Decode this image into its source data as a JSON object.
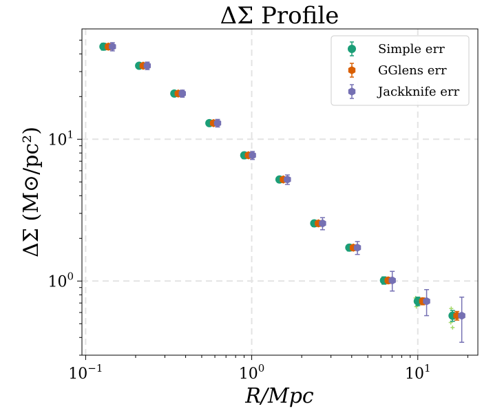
{
  "chart_data": {
    "type": "scatter",
    "title": "ΔΣ Profile",
    "xlabel": "R/Mpc",
    "ylabel": "ΔΣ (M⊙/pc²)",
    "xscale": "log",
    "yscale": "log",
    "xlim": [
      0.095,
      23
    ],
    "ylim": [
      0.3,
      60
    ],
    "xticks": [
      {
        "value": 0.1,
        "base": "10",
        "exp": "−1"
      },
      {
        "value": 1,
        "base": "10",
        "exp": "0"
      },
      {
        "value": 10,
        "base": "10",
        "exp": "1"
      }
    ],
    "yticks": [
      {
        "value": 1,
        "base": "10",
        "exp": "0"
      },
      {
        "value": 10,
        "base": "10",
        "exp": "1"
      }
    ],
    "grid": true,
    "legend_position": "top-right",
    "series": [
      {
        "name": "Simple err",
        "color": "#1b9e77",
        "marker": "circle",
        "points": [
          {
            "x": 0.128,
            "y": 45.0,
            "err": 2.5
          },
          {
            "x": 0.21,
            "y": 33.0,
            "err": 1.5
          },
          {
            "x": 0.342,
            "y": 21.0,
            "err": 1.0
          },
          {
            "x": 0.556,
            "y": 13.0,
            "err": 0.6
          },
          {
            "x": 0.902,
            "y": 7.7,
            "err": 0.4
          },
          {
            "x": 1.47,
            "y": 5.2,
            "err": 0.25
          },
          {
            "x": 2.38,
            "y": 2.55,
            "err": 0.13
          },
          {
            "x": 3.87,
            "y": 1.72,
            "err": 0.09
          },
          {
            "x": 6.26,
            "y": 1.01,
            "err": 0.06
          },
          {
            "x": 10.0,
            "y": 0.72,
            "err": 0.05
          },
          {
            "x": 16.2,
            "y": 0.57,
            "err": 0.05
          }
        ]
      },
      {
        "name": "GGlens err",
        "color": "#d95f02",
        "marker": "hexagon",
        "points": [
          {
            "x": 0.137,
            "y": 45.0,
            "err": 2.2
          },
          {
            "x": 0.222,
            "y": 33.0,
            "err": 1.3
          },
          {
            "x": 0.361,
            "y": 21.0,
            "err": 0.9
          },
          {
            "x": 0.589,
            "y": 13.0,
            "err": 0.55
          },
          {
            "x": 0.955,
            "y": 7.7,
            "err": 0.35
          },
          {
            "x": 1.55,
            "y": 5.2,
            "err": 0.22
          },
          {
            "x": 2.52,
            "y": 2.55,
            "err": 0.12
          },
          {
            "x": 4.09,
            "y": 1.72,
            "err": 0.08
          },
          {
            "x": 6.63,
            "y": 1.01,
            "err": 0.05
          },
          {
            "x": 10.7,
            "y": 0.72,
            "err": 0.04
          },
          {
            "x": 17.2,
            "y": 0.57,
            "err": 0.04
          }
        ]
      },
      {
        "name": "Jackknife err",
        "color": "#7570b3",
        "marker": "hexagon",
        "points": [
          {
            "x": 0.145,
            "y": 45.0,
            "err": 3.0
          },
          {
            "x": 0.235,
            "y": 33.0,
            "err": 2.0
          },
          {
            "x": 0.382,
            "y": 21.0,
            "err": 1.2
          },
          {
            "x": 0.623,
            "y": 13.0,
            "err": 0.8
          },
          {
            "x": 1.01,
            "y": 7.7,
            "err": 0.5
          },
          {
            "x": 1.64,
            "y": 5.2,
            "err": 0.4
          },
          {
            "x": 2.67,
            "y": 2.55,
            "err": 0.25
          },
          {
            "x": 4.33,
            "y": 1.72,
            "err": 0.18
          },
          {
            "x": 7.02,
            "y": 1.01,
            "err": 0.16
          },
          {
            "x": 11.3,
            "y": 0.72,
            "err": 0.15
          },
          {
            "x": 18.4,
            "y": 0.57,
            "err": 0.2
          }
        ]
      }
    ],
    "faint_points": {
      "color": "#a6d96a",
      "marker": "plus",
      "points": [
        {
          "x": 9.7,
          "y": 0.76
        },
        {
          "x": 9.9,
          "y": 0.69
        },
        {
          "x": 10.1,
          "y": 0.74
        },
        {
          "x": 9.8,
          "y": 0.66
        },
        {
          "x": 15.9,
          "y": 0.64
        },
        {
          "x": 16.1,
          "y": 0.6
        },
        {
          "x": 16.0,
          "y": 0.55
        },
        {
          "x": 15.8,
          "y": 0.51
        },
        {
          "x": 16.2,
          "y": 0.47
        }
      ]
    }
  }
}
